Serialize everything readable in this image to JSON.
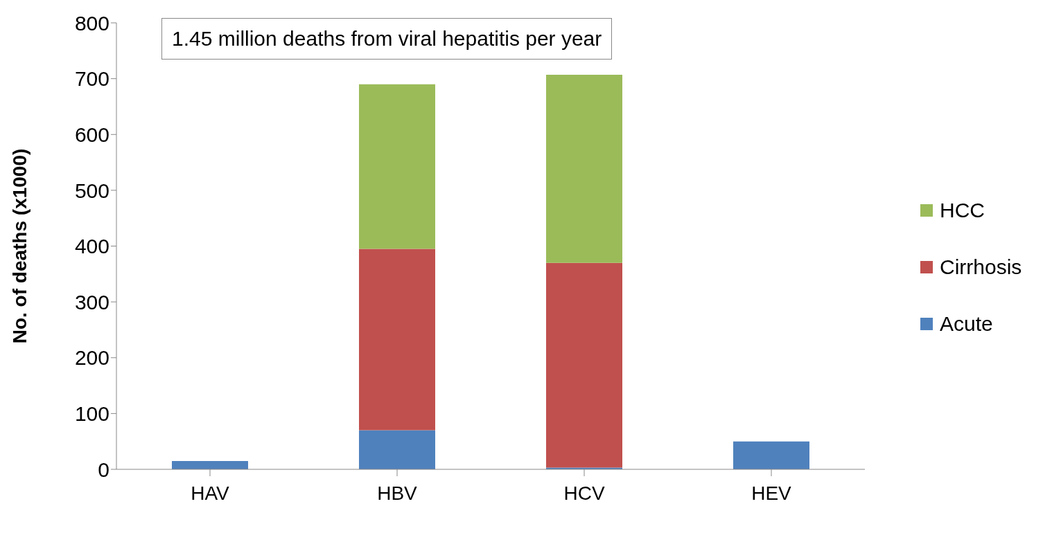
{
  "chart_data": {
    "type": "bar",
    "title": "1.45 million deaths from viral hepatitis per year",
    "ylabel": "No. of deaths (x1000)",
    "categories": [
      "HAV",
      "HBV",
      "HCV",
      "HEV"
    ],
    "series": [
      {
        "name": "Acute",
        "color": "#4f81bd",
        "values": [
          15,
          70,
          3,
          50
        ]
      },
      {
        "name": "Cirrhosis",
        "color": "#c0504d",
        "values": [
          null,
          325,
          367,
          null
        ]
      },
      {
        "name": "HCC",
        "color": "#9bbb59",
        "values": [
          null,
          295,
          337,
          null
        ]
      }
    ],
    "stacked": true,
    "ylim": [
      0,
      800
    ],
    "yticks": [
      0,
      100,
      200,
      300,
      400,
      500,
      600,
      700,
      800
    ],
    "grid": false,
    "legend": "right"
  }
}
